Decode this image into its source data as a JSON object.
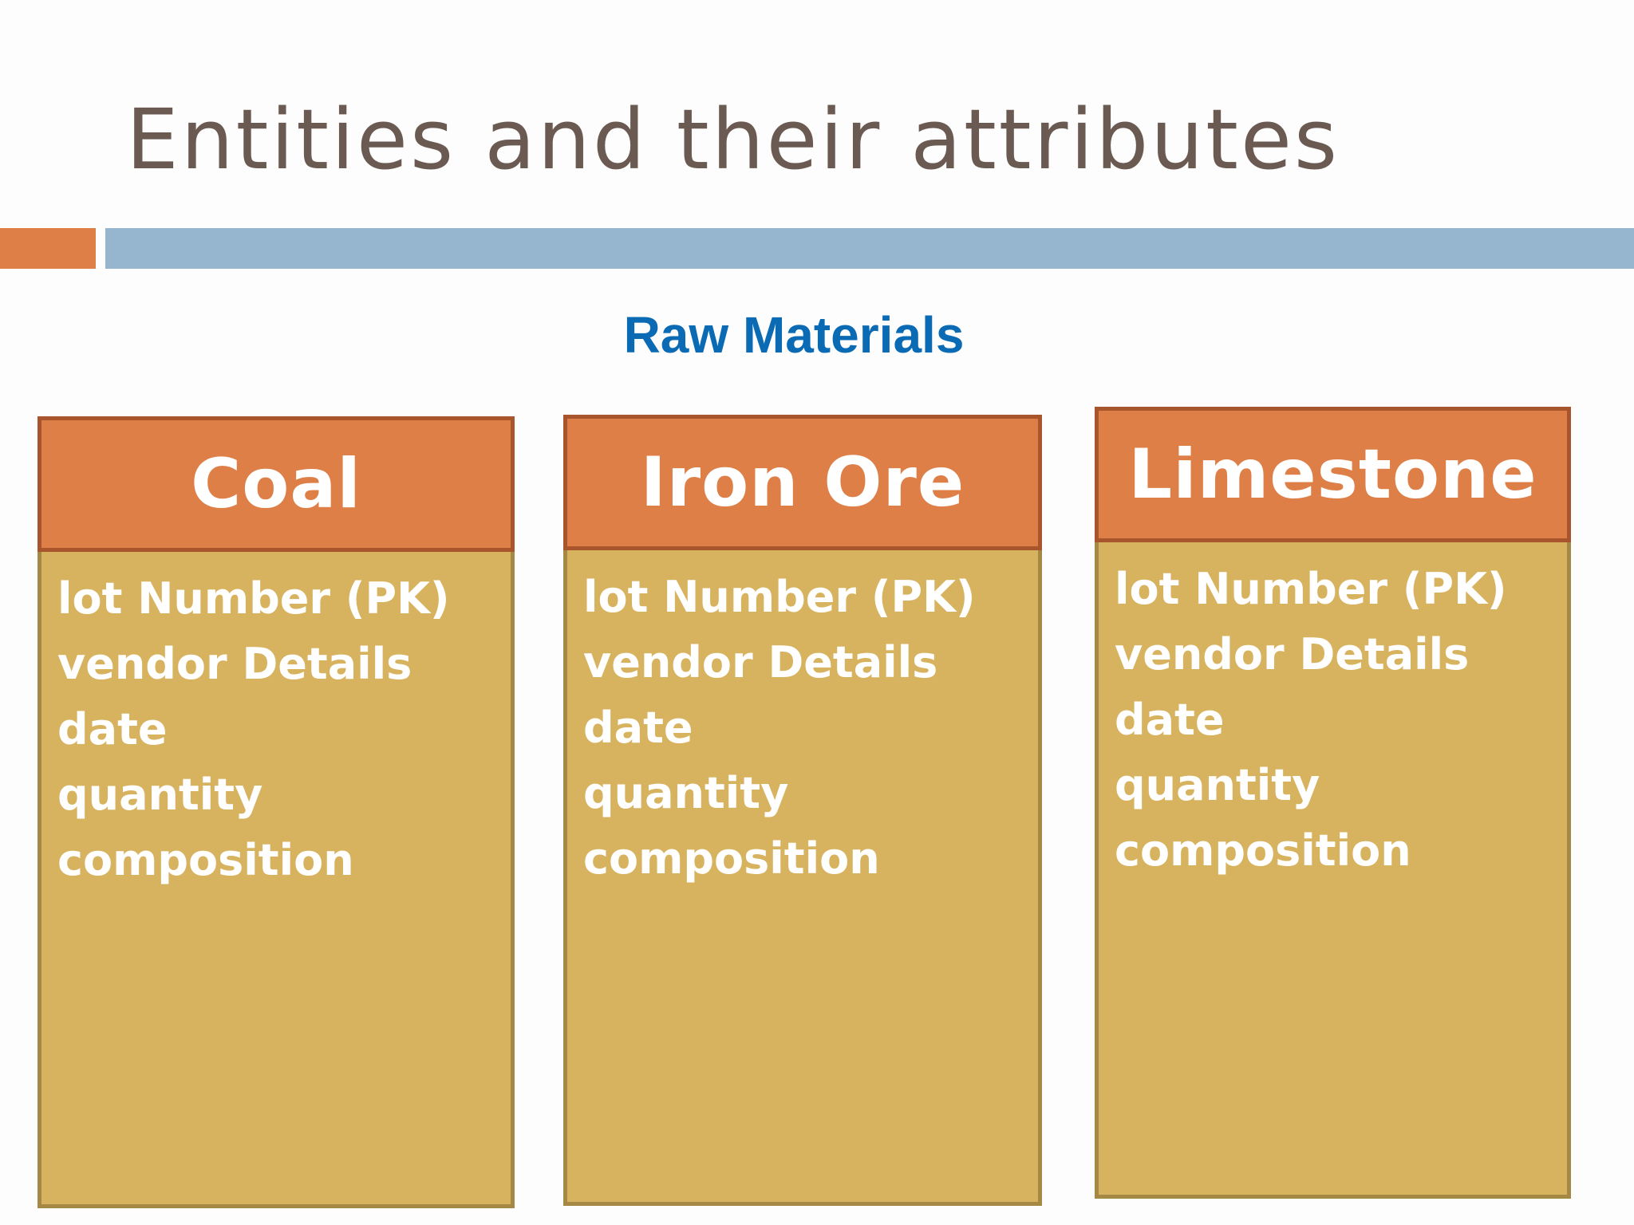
{
  "slide": {
    "title": "Entities and their attributes",
    "section_title": "Raw Materials"
  },
  "colors": {
    "accent_orange": "#dd7f47",
    "bar_blue": "#96b5cf",
    "title_brown": "#6b5a52",
    "section_blue": "#0a6ab4",
    "entity_body": "#d8b35f"
  },
  "entities": [
    {
      "name": "Coal",
      "attributes": [
        "lot Number (PK)",
        "vendor Details",
        "date",
        "quantity",
        "composition"
      ]
    },
    {
      "name": "Iron Ore",
      "attributes": [
        "lot Number (PK)",
        "vendor Details",
        "date",
        "quantity",
        "composition"
      ]
    },
    {
      "name": "Limestone",
      "attributes": [
        "lot Number (PK)",
        "vendor Details",
        "date",
        "quantity",
        "composition"
      ]
    }
  ]
}
